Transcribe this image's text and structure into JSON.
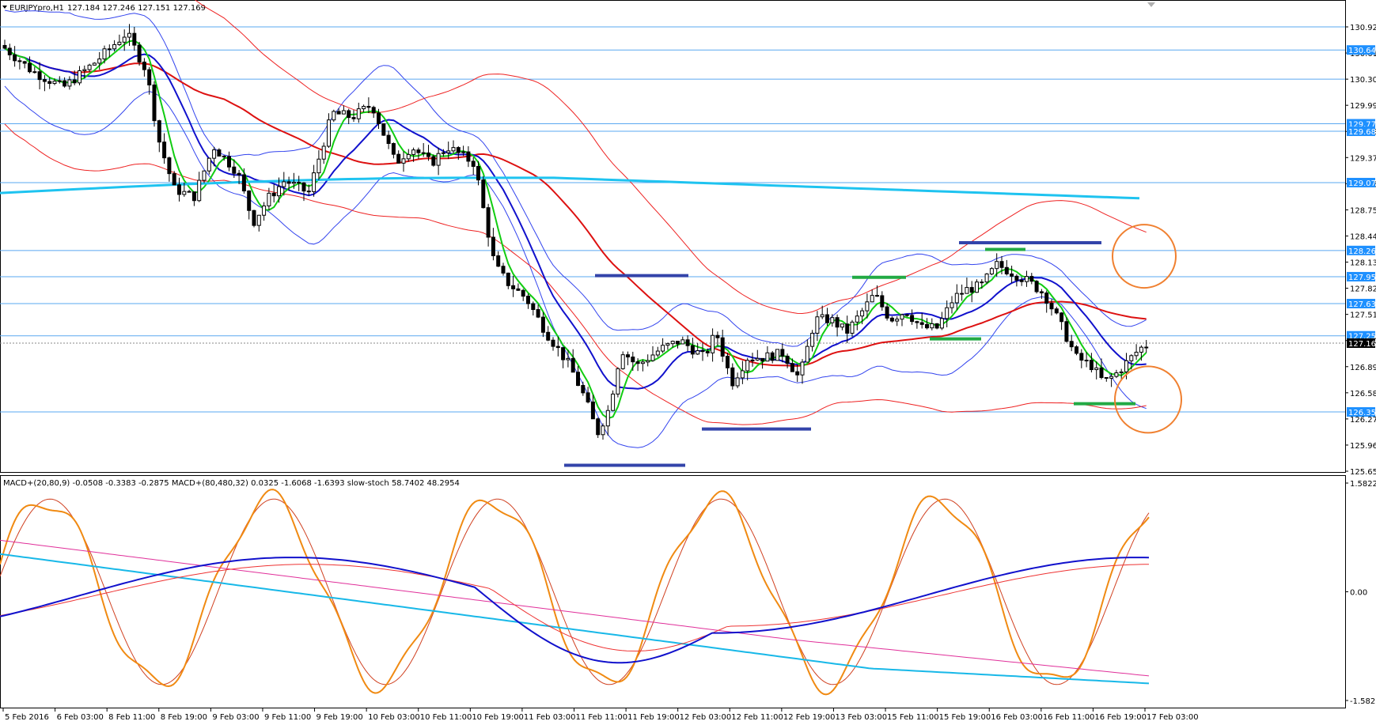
{
  "app": {
    "symbol_header": "EURJPYpro,H1",
    "ohlc": "127.184 127.246 127.151 127.169"
  },
  "main": {
    "price_axis": [
      "130.920",
      "130.610",
      "130.300",
      "129.990",
      "129.680",
      "129.370",
      "129.060",
      "128.750",
      "128.440",
      "128.130",
      "127.820",
      "127.510",
      "127.200",
      "126.890",
      "126.580",
      "126.270",
      "125.960",
      "125.650"
    ],
    "price_labels": [
      {
        "text": "130.646",
        "color": "#1e90ff"
      },
      {
        "text": "129.771",
        "color": "#1e90ff"
      },
      {
        "text": "129.682",
        "color": "#1e90ff"
      },
      {
        "text": "129.073",
        "color": "#1e90ff"
      },
      {
        "text": "128.268",
        "color": "#1e90ff"
      },
      {
        "text": "127.957",
        "color": "#1e90ff"
      },
      {
        "text": "127.638",
        "color": "#1e90ff"
      },
      {
        "text": "127.256",
        "color": "#1e90ff"
      },
      {
        "text": "127.169",
        "color": "#000000"
      },
      {
        "text": "126.353",
        "color": "#1e90ff"
      }
    ],
    "horizontal_levels": [
      130.92,
      130.646,
      130.3,
      129.771,
      129.682,
      129.073,
      128.268,
      127.957,
      127.638,
      127.256,
      126.353
    ],
    "annotations": {
      "circles": 2,
      "circle_color": "#f08030",
      "resistance_color": "#3344aa",
      "support_color": "#22aa44"
    }
  },
  "indicator": {
    "title": "MACD+(20,80,9) -0.0508 -0.3383 -0.2875  MACD+(80,480,32) 0.0325 -1.6068 -1.6393  slow-stoch 58.7402 48.2954",
    "axis": [
      "1.5822",
      "0.00",
      "-1.5822"
    ]
  },
  "time_axis": [
    "5 Feb 2016",
    "6 Feb 03:00",
    "8 Feb 11:00",
    "8 Feb 19:00",
    "9 Feb 03:00",
    "9 Feb 11:00",
    "9 Feb 19:00",
    "10 Feb 03:00",
    "10 Feb 11:00",
    "10 Feb 19:00",
    "11 Feb 03:00",
    "11 Feb 11:00",
    "11 Feb 19:00",
    "12 Feb 03:00",
    "12 Feb 11:00",
    "12 Feb 19:00",
    "13 Feb 03:00",
    "15 Feb 11:00",
    "15 Feb 19:00",
    "16 Feb 03:00",
    "16 Feb 11:00",
    "16 Feb 19:00",
    "17 Feb 03:00"
  ],
  "colors": {
    "sma_long": "#dd1111",
    "sma_mid": "#1111cc",
    "sma_fast": "#11cc11",
    "long_ma": "#1ec3f0",
    "bands_blue": "#3344ee",
    "bands_red": "#ee2222",
    "stoch": "#f08a12",
    "macd_slow": "#e0309a",
    "macd_cyan": "#18b8e8",
    "level_line": "#5aa8f0"
  }
}
